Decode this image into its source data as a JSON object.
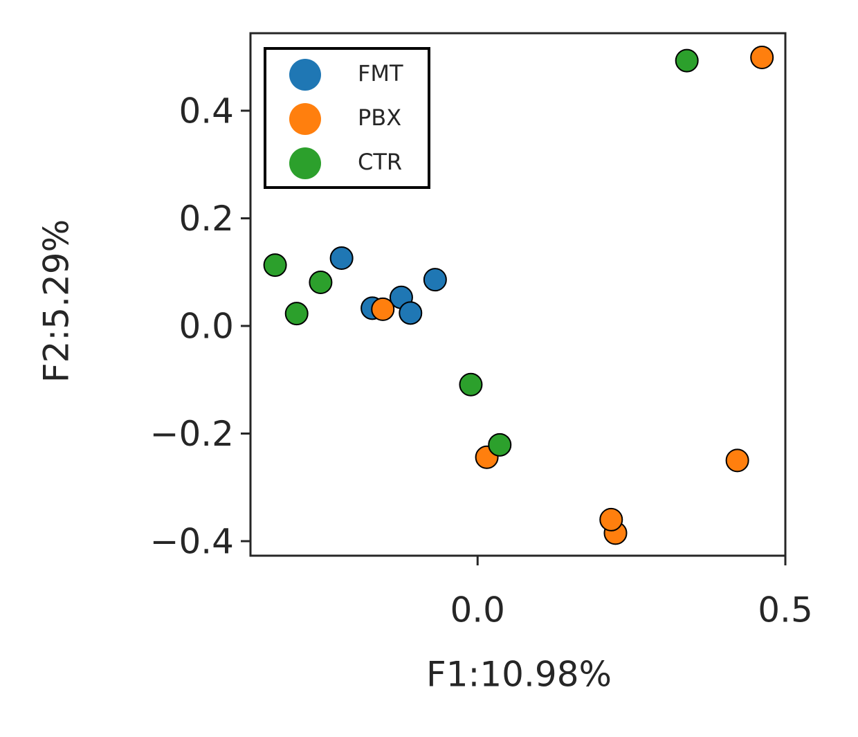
{
  "chart_data": {
    "type": "scatter",
    "xlabel": "F1:10.98%",
    "ylabel": "F2:5.29%",
    "xlim": [
      -0.369,
      0.5
    ],
    "ylim": [
      -0.427,
      0.544
    ],
    "xticks": [
      {
        "value": 0,
        "label": "0.0"
      },
      0.5
    ],
    "yticks": [
      {
        "value": -0.4,
        "label": "−0.4"
      },
      {
        "value": -0.2,
        "label": "−0.2"
      },
      {
        "value": 0,
        "label": "0.0"
      },
      0.2,
      0.4
    ],
    "legend": "upper left",
    "series": [
      {
        "name": "FMT",
        "color": "#1f77b4",
        "x": [
          -0.221,
          -0.171,
          -0.124,
          -0.109,
          -0.069
        ],
        "values": [
          0.126,
          0.033,
          0.053,
          0.024,
          0.086
        ]
      },
      {
        "name": "PBX",
        "color": "#ff7f0e",
        "x": [
          0.462,
          -0.154,
          0.015,
          0.422,
          0.224,
          0.217
        ],
        "values": [
          0.499,
          0.031,
          -0.244,
          -0.25,
          -0.385,
          -0.36
        ]
      },
      {
        "name": "CTR",
        "color": "#2ca02c",
        "x": [
          0.34,
          -0.329,
          -0.255,
          -0.294,
          -0.011,
          0.036
        ],
        "values": [
          0.493,
          0.113,
          0.081,
          0.023,
          -0.109,
          -0.221
        ]
      }
    ]
  }
}
